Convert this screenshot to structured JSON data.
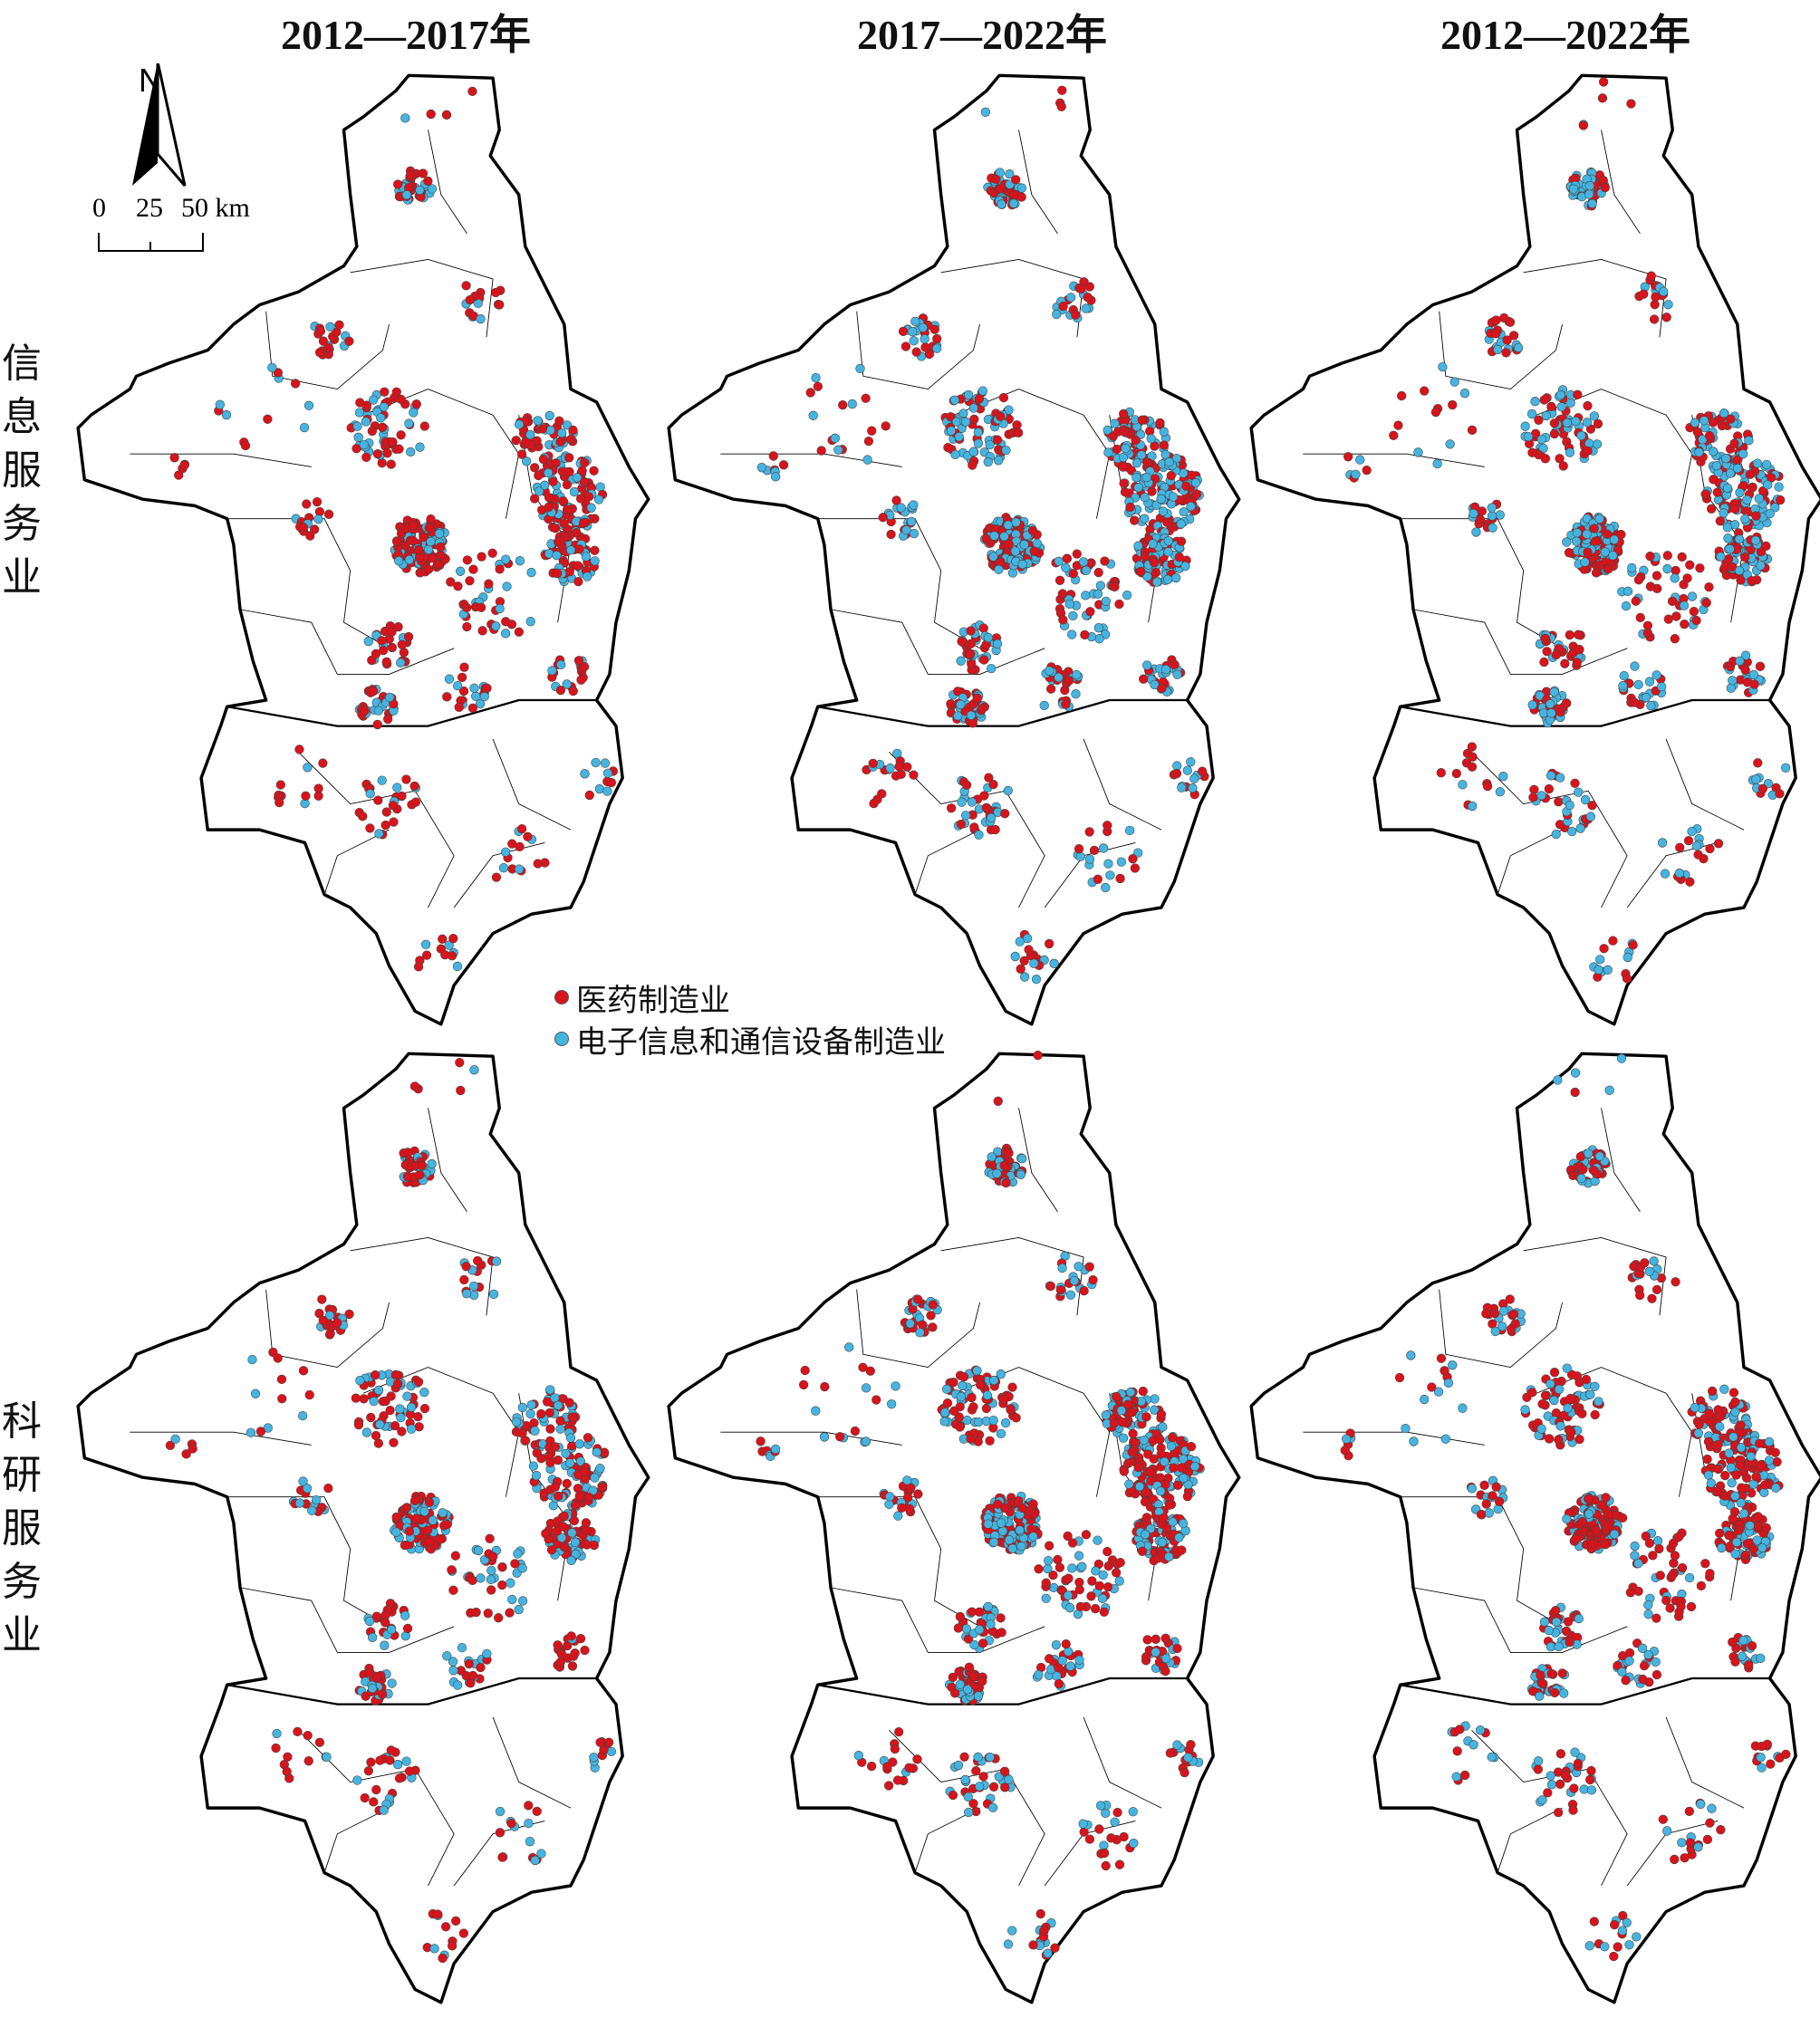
{
  "columns": [
    {
      "title": "2012—2017年"
    },
    {
      "title": "2017—2022年"
    },
    {
      "title": "2012—2022年"
    }
  ],
  "rows": [
    {
      "label": "信息服务业"
    },
    {
      "label": "科研服务业"
    }
  ],
  "legend": {
    "items": [
      {
        "label": "医药制造业",
        "color": "#d9131b"
      },
      {
        "label": "电子信息和通信设备制造业",
        "color": "#45b4e0"
      }
    ]
  },
  "north_arrow": {
    "label": "N"
  },
  "scale_bar": {
    "ticks": [
      "0",
      "25",
      "50 km"
    ]
  }
}
